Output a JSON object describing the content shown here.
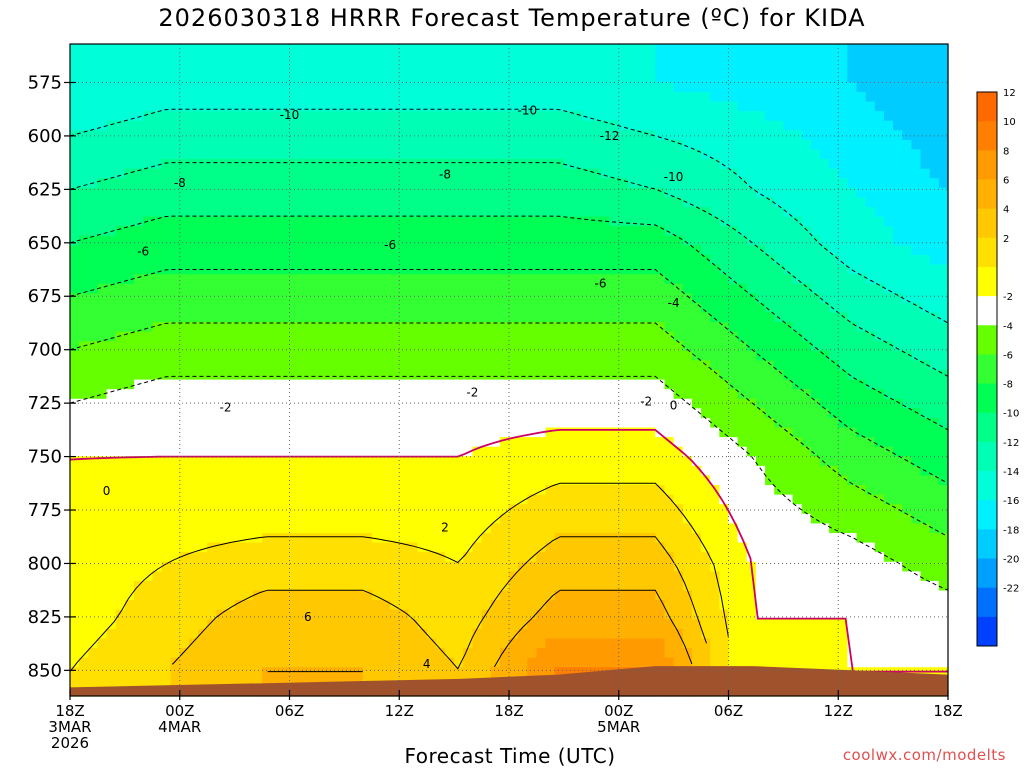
{
  "chart_data": {
    "type": "heatmap",
    "title": "2026030318 HRRR Forecast Temperature (ºC) for KIDA",
    "xlabel": "Forecast Time (UTC)",
    "ylabel": "",
    "credit": "coolwx.com/modelts",
    "x_hours": [
      0,
      6,
      12,
      18,
      24,
      30,
      36,
      42,
      48
    ],
    "x_ticks": [
      {
        "hour": 0,
        "lines": [
          "18Z",
          "3MAR",
          "2026"
        ]
      },
      {
        "hour": 6,
        "lines": [
          "00Z",
          "4MAR"
        ]
      },
      {
        "hour": 12,
        "lines": [
          "06Z"
        ]
      },
      {
        "hour": 18,
        "lines": [
          "12Z"
        ]
      },
      {
        "hour": 24,
        "lines": [
          "18Z"
        ]
      },
      {
        "hour": 30,
        "lines": [
          "00Z",
          "5MAR"
        ]
      },
      {
        "hour": 36,
        "lines": [
          "06Z"
        ]
      },
      {
        "hour": 42,
        "lines": [
          "12Z"
        ]
      },
      {
        "hour": 48,
        "lines": [
          "18Z"
        ]
      }
    ],
    "xlim": [
      0,
      48
    ],
    "y_ticks": [
      575,
      600,
      625,
      650,
      675,
      700,
      725,
      750,
      775,
      800,
      825,
      850
    ],
    "ylim": [
      557,
      862
    ],
    "y_inverted": true,
    "levels": [
      575,
      600,
      625,
      650,
      675,
      700,
      725,
      750,
      775,
      800,
      825,
      850
    ],
    "temperature_grid": [
      [
        -14,
        -13,
        -13,
        -13,
        -13,
        -13,
        -14,
        -15,
        -16,
        -18
      ],
      [
        -12,
        -11,
        -11,
        -11,
        -11,
        -11,
        -12,
        -13,
        -15,
        -17
      ],
      [
        -10,
        -9,
        -9,
        -9,
        -9,
        -9,
        -10,
        -12,
        -14,
        -16
      ],
      [
        -8,
        -7,
        -7,
        -7,
        -7,
        -7,
        -7,
        -10,
        -13,
        -15
      ],
      [
        -6,
        -5,
        -5,
        -5,
        -5,
        -5,
        -5,
        -8,
        -11,
        -13
      ],
      [
        -4,
        -3,
        -3,
        -3,
        -3,
        -3,
        -3,
        -6,
        -9,
        -11
      ],
      [
        -2,
        -1,
        -1,
        -1,
        -1,
        -1,
        -1,
        -4,
        -7,
        -9
      ],
      [
        0,
        0,
        0,
        0,
        0,
        1,
        1,
        -2,
        -5,
        -7
      ],
      [
        0,
        1,
        1,
        1,
        1,
        3,
        3,
        -1,
        -3,
        -5
      ],
      [
        1,
        2,
        3,
        3,
        2,
        5,
        5,
        0,
        -1,
        -3
      ],
      [
        1,
        3,
        5,
        5,
        3,
        7,
        7,
        0,
        0,
        -1
      ],
      [
        2,
        4,
        6,
        6,
        4,
        10,
        10,
        0,
        0,
        0
      ]
    ],
    "grid_hours": [
      0,
      5.3,
      10.7,
      16,
      21.3,
      26.7,
      32,
      37.3,
      42.7,
      48
    ],
    "terrain_pressure": [
      858,
      857,
      856,
      855,
      854,
      852,
      848,
      848,
      850,
      852
    ],
    "contour_labels": [
      {
        "hour": 12,
        "level": 592,
        "text": "-10"
      },
      {
        "hour": 25,
        "level": 590,
        "text": "-10"
      },
      {
        "hour": 29.5,
        "level": 602,
        "text": "-12"
      },
      {
        "hour": 33,
        "level": 621,
        "text": "-10"
      },
      {
        "hour": 6,
        "level": 624,
        "text": "-8"
      },
      {
        "hour": 20.5,
        "level": 620,
        "text": "-8"
      },
      {
        "hour": 4,
        "level": 656,
        "text": "-6"
      },
      {
        "hour": 17.5,
        "level": 653,
        "text": "-6"
      },
      {
        "hour": 29,
        "level": 671,
        "text": "-6"
      },
      {
        "hour": 33,
        "level": 680,
        "text": "-4"
      },
      {
        "hour": 8.5,
        "level": 729,
        "text": "-2"
      },
      {
        "hour": 22,
        "level": 722,
        "text": "-2"
      },
      {
        "hour": 31.5,
        "level": 726,
        "text": "-2"
      },
      {
        "hour": 33,
        "level": 728,
        "text": "0"
      },
      {
        "hour": 2,
        "level": 768,
        "text": "0"
      },
      {
        "hour": 20.5,
        "level": 785,
        "text": "2"
      },
      {
        "hour": 13,
        "level": 827,
        "text": "6"
      },
      {
        "hour": 19.5,
        "level": 849,
        "text": "4"
      }
    ],
    "colorbar": {
      "labels": [
        "12",
        "10",
        "8",
        "6",
        "4",
        "2",
        "-2",
        "-4",
        "-6",
        "-8",
        "-10",
        "-12",
        "-14",
        "-16",
        "-18",
        "-20",
        "-22"
      ],
      "bands": [
        {
          "low": 12,
          "high": 14,
          "color": "#ff6a00"
        },
        {
          "low": 10,
          "high": 12,
          "color": "#ff7f00"
        },
        {
          "low": 8,
          "high": 10,
          "color": "#ff9a00"
        },
        {
          "low": 6,
          "high": 8,
          "color": "#ffb000"
        },
        {
          "low": 4,
          "high": 6,
          "color": "#ffc800"
        },
        {
          "low": 2,
          "high": 4,
          "color": "#ffe000"
        },
        {
          "low": 0,
          "high": 2,
          "color": "#ffff00"
        },
        {
          "low": -2,
          "high": 0,
          "color": "#ffffff"
        },
        {
          "low": -4,
          "high": -2,
          "color": "#66ff00"
        },
        {
          "low": -6,
          "high": -4,
          "color": "#33ff33"
        },
        {
          "low": -8,
          "high": -6,
          "color": "#00ff55"
        },
        {
          "low": -10,
          "high": -8,
          "color": "#00ff88"
        },
        {
          "low": -12,
          "high": -10,
          "color": "#00ffb4"
        },
        {
          "low": -14,
          "high": -12,
          "color": "#00ffd9"
        },
        {
          "low": -16,
          "high": -14,
          "color": "#00f0ff"
        },
        {
          "low": -18,
          "high": -16,
          "color": "#00ccff"
        },
        {
          "low": -20,
          "high": -18,
          "color": "#00a0ff"
        },
        {
          "low": -22,
          "high": -20,
          "color": "#0070ff"
        },
        {
          "low": -24,
          "high": -22,
          "color": "#0040ff"
        }
      ]
    },
    "zero_contour_color": "#cc0066",
    "terrain_color": "#a0522d",
    "grid": true,
    "legend": "right"
  }
}
